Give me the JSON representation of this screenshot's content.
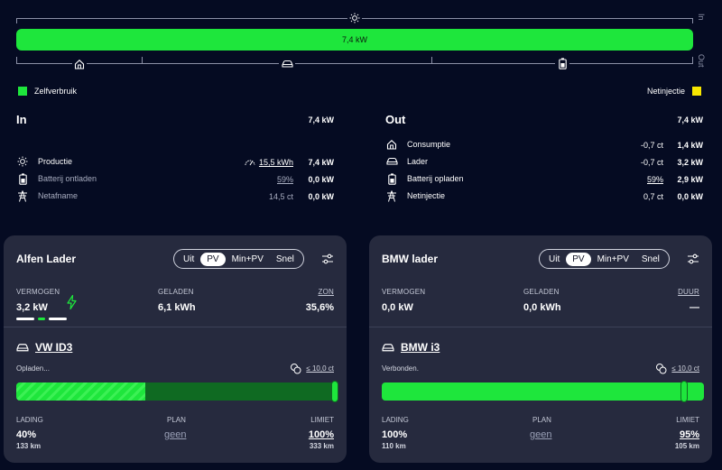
{
  "colors": {
    "background": "#050b22",
    "accent_green": "#1ee63c",
    "accent_yellow": "#f7e600",
    "card": "#262a3e"
  },
  "energy_bar": {
    "value": "7,4 kW",
    "label_in": "In",
    "label_out": "Out",
    "top_icon": "sun-icon",
    "bottom_icons": [
      "home-icon",
      "car-icon",
      "battery-icon"
    ]
  },
  "legend": {
    "self_consumption": "Zelfverbruik",
    "grid_feed": "Netinjectie"
  },
  "in_section": {
    "title": "In",
    "total": "7,4 kW",
    "rows": [
      {
        "label": "Productie",
        "extra": "15,5 kWh",
        "extra_icon": "gauge-icon",
        "value": "7,4 kW",
        "icon": "sun-icon"
      },
      {
        "label": "Batterij ontladen",
        "extra": "59%",
        "value": "0,0 kW",
        "icon": "battery-icon"
      },
      {
        "label": "Netafname",
        "extra": "14,5 ct",
        "value": "0,0 kW",
        "icon": "power-pylon-icon"
      }
    ]
  },
  "out_section": {
    "title": "Out",
    "total": "7,4 kW",
    "rows": [
      {
        "label": "Consumptie",
        "price": "-0,7 ct",
        "value": "1,4 kW",
        "icon": "home-icon"
      },
      {
        "label": "Lader",
        "price": "-0,7 ct",
        "value": "3,2 kW",
        "icon": "car-icon"
      },
      {
        "label": "Batterij opladen",
        "price": "59%",
        "value": "2,9 kW",
        "icon": "battery-icon"
      },
      {
        "label": "Netinjectie",
        "price": "0,7 ct",
        "value": "0,0 kW",
        "icon": "power-pylon-icon"
      }
    ]
  },
  "modes": [
    "Uit",
    "PV",
    "Min+PV",
    "Snel"
  ],
  "chargers": [
    {
      "title": "Alfen Lader",
      "active_mode": "PV",
      "power_label": "VERMOGEN",
      "power": "3,2 kW",
      "charged_label": "GELADEN",
      "charged": "6,1 kWh",
      "third_label": "ZON",
      "third_value": "35,6%",
      "vehicle": "VW ID3",
      "status": "Opladen...",
      "price_limit": "≤ 10,0 ct",
      "charge_level": 0.4,
      "limit_level": 1.0,
      "soc_label": "LADING",
      "soc": "40%",
      "soc_range": "133 km",
      "plan_label": "PLAN",
      "plan": "geen",
      "limit_label": "LIMIET",
      "limit": "100%",
      "limit_range": "333 km"
    },
    {
      "title": "BMW lader",
      "active_mode": "PV",
      "power_label": "VERMOGEN",
      "power": "0,0 kW",
      "charged_label": "GELADEN",
      "charged": "0,0 kWh",
      "third_label": "DUUR",
      "third_value": "—",
      "vehicle": "BMW i3",
      "status": "Verbonden.",
      "price_limit": "≤ 10,0 ct",
      "charge_level": 1.0,
      "limit_level": 0.95,
      "soc_label": "LADING",
      "soc": "100%",
      "soc_range": "110 km",
      "plan_label": "PLAN",
      "plan": "geen",
      "limit_label": "LIMIET",
      "limit": "95%",
      "limit_range": "105 km"
    }
  ]
}
